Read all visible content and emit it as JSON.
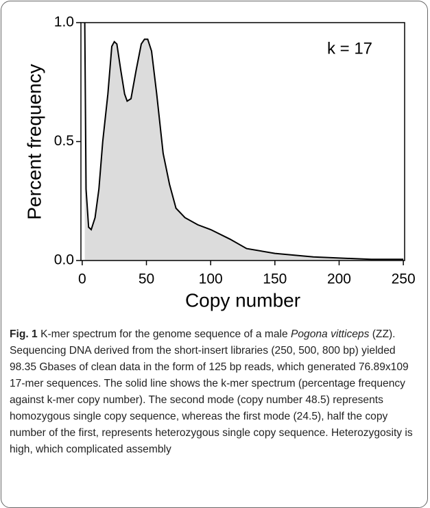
{
  "chart_data": {
    "type": "area",
    "annotation": "k = 17",
    "xlabel": "Copy number",
    "ylabel": "Percent frequency",
    "x": [
      2,
      3,
      5,
      7,
      10,
      13,
      16,
      20,
      23,
      25,
      27,
      30,
      33,
      35,
      38,
      42,
      46,
      48.5,
      51,
      54,
      58,
      63,
      68,
      73,
      80,
      90,
      100,
      115,
      128,
      150,
      180,
      225,
      250
    ],
    "values": [
      1.0,
      0.3,
      0.14,
      0.13,
      0.18,
      0.3,
      0.5,
      0.7,
      0.9,
      0.92,
      0.91,
      0.8,
      0.7,
      0.67,
      0.68,
      0.8,
      0.91,
      0.93,
      0.93,
      0.88,
      0.7,
      0.45,
      0.32,
      0.22,
      0.18,
      0.15,
      0.13,
      0.09,
      0.05,
      0.03,
      0.015,
      0.005,
      0.005
    ],
    "color": "#000000",
    "fill_color": "#dcdcdc",
    "xlim": [
      -1,
      251
    ],
    "ylim": [
      0,
      1
    ],
    "xticks": [
      0,
      50,
      100,
      150,
      200,
      250
    ],
    "yticks": [
      {
        "value": 0,
        "label": "0.0"
      },
      {
        "value": 0.5,
        "label": "0.5"
      },
      {
        "value": 1,
        "label": "1.0"
      }
    ]
  },
  "caption": {
    "label": "Fig. 1",
    "text_before": " K-mer spectrum for the genome sequence of a male ",
    "italic": "Pogona vitticeps",
    "text_after": " (ZZ). Sequencing DNA derived from the short-insert libraries (250, 500, 800 bp) yielded 98.35 Gbases of clean data in the form of 125 bp reads, which generated 76.89x109 17-mer sequences. The solid line shows the k-mer spectrum (percentage frequency against k-mer copy number). The second mode (copy number 48.5) represents homozygous single copy sequence, whereas the first mode (24.5), half the copy number of the first, represents heterozygous single copy sequence. Heterozygosity is high, which complicated assembly"
  }
}
